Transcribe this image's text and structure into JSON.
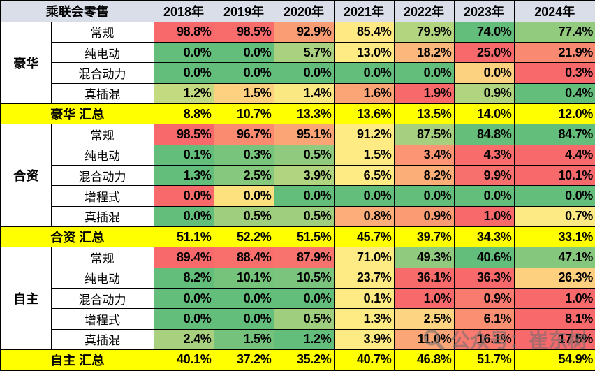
{
  "chart_data": {
    "type": "heatmap",
    "title": "乘联会零售",
    "unit": "%",
    "columns": [
      "2018年",
      "2019年",
      "2020年",
      "2021年",
      "2022年",
      "2023年",
      "2024年"
    ],
    "color_scale": {
      "low": "#63BE7B",
      "mid": "#FFEB84",
      "high": "#F8696B"
    },
    "groups": [
      {
        "name": "豪华",
        "rows": [
          {
            "category": "常规",
            "values": [
              98.8,
              98.5,
              92.9,
              85.4,
              79.9,
              74.0,
              77.4
            ],
            "colors": [
              "#F8696B",
              "#F86C6C",
              "#FA9D74",
              "#FFE983",
              "#B4D580",
              "#63BE7B",
              "#92CB7E"
            ]
          },
          {
            "category": "纯电动",
            "values": [
              0.0,
              0.0,
              5.7,
              13.0,
              18.2,
              25.0,
              21.9
            ],
            "colors": [
              "#63BE7B",
              "#63BE7B",
              "#AAD17F",
              "#FFEB84",
              "#FCB77C",
              "#F8696B",
              "#FA8971"
            ]
          },
          {
            "category": "混合动力",
            "values": [
              0.0,
              0.0,
              0.0,
              0.0,
              0.0,
              0.0,
              0.3
            ],
            "colors": [
              "#63BE7B",
              "#63BE7B",
              "#63BE7B",
              "#63BE7B",
              "#63BE7B",
              "#FCD17F",
              "#F8696B"
            ]
          },
          {
            "category": "真插混",
            "values": [
              1.2,
              1.5,
              1.4,
              1.6,
              1.9,
              0.9,
              0.4
            ],
            "colors": [
              "#C3DA81",
              "#FDD180",
              "#FAE883",
              "#FBA476",
              "#F8696B",
              "#B1D480",
              "#63BE7B"
            ]
          }
        ],
        "summary": {
          "label": "豪华 汇总",
          "values": [
            8.8,
            10.7,
            13.3,
            13.6,
            13.5,
            14.0,
            12.0
          ]
        }
      },
      {
        "name": "合资",
        "rows": [
          {
            "category": "常规",
            "values": [
              98.5,
              96.7,
              95.1,
              91.2,
              87.5,
              84.8,
              84.7
            ],
            "colors": [
              "#F8696B",
              "#FA8B71",
              "#FBA577",
              "#FFEB84",
              "#A6D07F",
              "#65BF7B",
              "#63BE7B"
            ]
          },
          {
            "category": "纯电动",
            "values": [
              0.1,
              0.3,
              0.5,
              1.5,
              3.4,
              4.3,
              4.4
            ],
            "colors": [
              "#63BE7B",
              "#79C47C",
              "#8FCA7E",
              "#FFEB84",
              "#FB9573",
              "#F86D6C",
              "#F8696B"
            ]
          },
          {
            "category": "混合动力",
            "values": [
              1.3,
              2.5,
              3.9,
              6.5,
              8.2,
              9.9,
              10.1
            ],
            "colors": [
              "#63BE7B",
              "#86C87D",
              "#B1D480",
              "#FFEB84",
              "#FCAE79",
              "#F8706D",
              "#F8696B"
            ]
          },
          {
            "category": "增程式",
            "values": [
              0.0,
              0.0,
              0.0,
              0.0,
              0.0,
              0.0,
              0.0
            ],
            "colors": [
              "#F8696B",
              "#FDE17F",
              "#63BE7B",
              "#63BE7B",
              "#63BE7B",
              "#63BE7B",
              "#63BE7B"
            ]
          },
          {
            "category": "真插混",
            "values": [
              0.0,
              0.5,
              0.5,
              0.8,
              0.9,
              1.0,
              0.7
            ],
            "colors": [
              "#63BE7B",
              "#9ECE7E",
              "#9ECE7E",
              "#FCAD79",
              "#FB9B74",
              "#F8696B",
              "#FDEA85"
            ]
          }
        ],
        "summary": {
          "label": "合资 汇总",
          "values": [
            51.1,
            52.2,
            51.5,
            45.7,
            39.7,
            34.3,
            33.1
          ]
        }
      },
      {
        "name": "自主",
        "rows": [
          {
            "category": "常规",
            "values": [
              89.4,
              88.4,
              87.9,
              71.0,
              49.3,
              40.6,
              47.1
            ],
            "colors": [
              "#F8696B",
              "#F86F6C",
              "#F8736D",
              "#FFEB84",
              "#8FCA7E",
              "#63BE7B",
              "#84C77D"
            ]
          },
          {
            "category": "纯电动",
            "values": [
              8.2,
              10.1,
              10.5,
              23.7,
              36.1,
              36.3,
              26.3
            ],
            "colors": [
              "#63BE7B",
              "#76C37C",
              "#7AC47D",
              "#FFEB84",
              "#F86B6B",
              "#F8696B",
              "#FDD080"
            ]
          },
          {
            "category": "混合动力",
            "values": [
              0.0,
              0.0,
              0.0,
              0.1,
              1.0,
              0.9,
              1.0
            ],
            "colors": [
              "#63BE7B",
              "#63BE7B",
              "#63BE7B",
              "#FFEB84",
              "#F8696B",
              "#F97A6E",
              "#F8696B"
            ]
          },
          {
            "category": "增程式",
            "values": [
              0.0,
              0.0,
              0.5,
              1.3,
              2.5,
              6.1,
              8.1
            ],
            "colors": [
              "#63BE7B",
              "#63BE7B",
              "#9FCE7E",
              "#FFEB84",
              "#FDD481",
              "#FA8F72",
              "#F8696B"
            ]
          },
          {
            "category": "真插混",
            "values": [
              2.4,
              1.5,
              1.2,
              3.9,
              11.0,
              16.1,
              17.5
            ],
            "colors": [
              "#A8D07F",
              "#74C27C",
              "#63BE7B",
              "#FFEB84",
              "#FBA677",
              "#F97A6E",
              "#F8696B"
            ]
          }
        ],
        "summary": {
          "label": "自主 汇总",
          "values": [
            40.1,
            37.2,
            35.2,
            40.7,
            46.8,
            51.7,
            54.9
          ]
        }
      }
    ]
  },
  "colors": {
    "header_bg": "#D9DEE9",
    "summary_bg": "#FFFF00",
    "border": "#000000"
  },
  "watermark": {
    "text": "公众号：崔东树"
  }
}
